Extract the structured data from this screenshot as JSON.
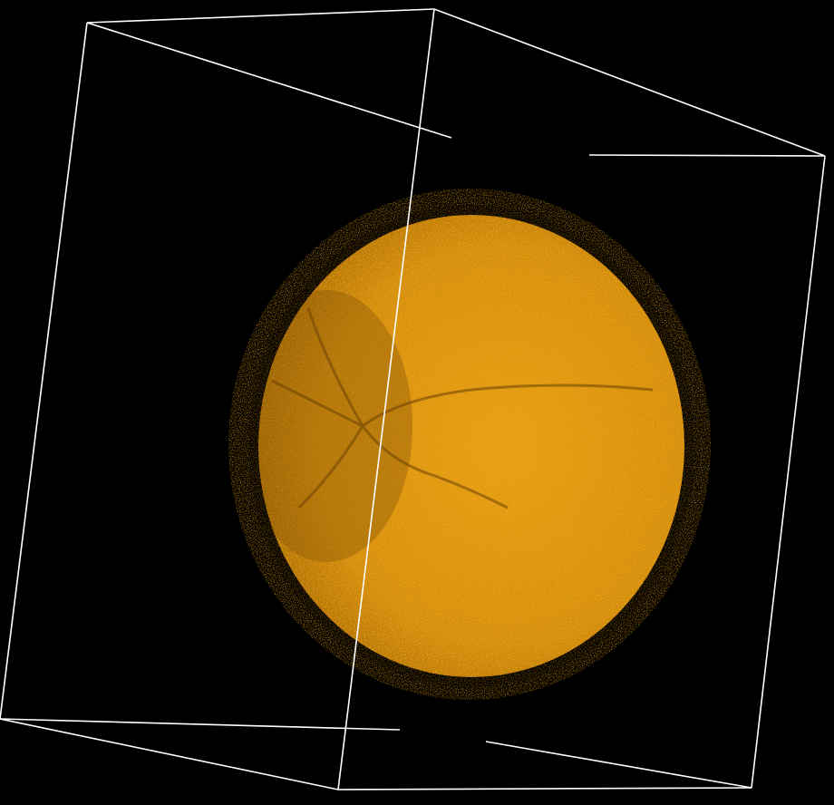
{
  "viewer": {
    "background_color": "#000000",
    "bounding_box_color": "#ffffff",
    "volume_color": "#e39a12",
    "volume_shadow_color": "#7a4d05"
  }
}
